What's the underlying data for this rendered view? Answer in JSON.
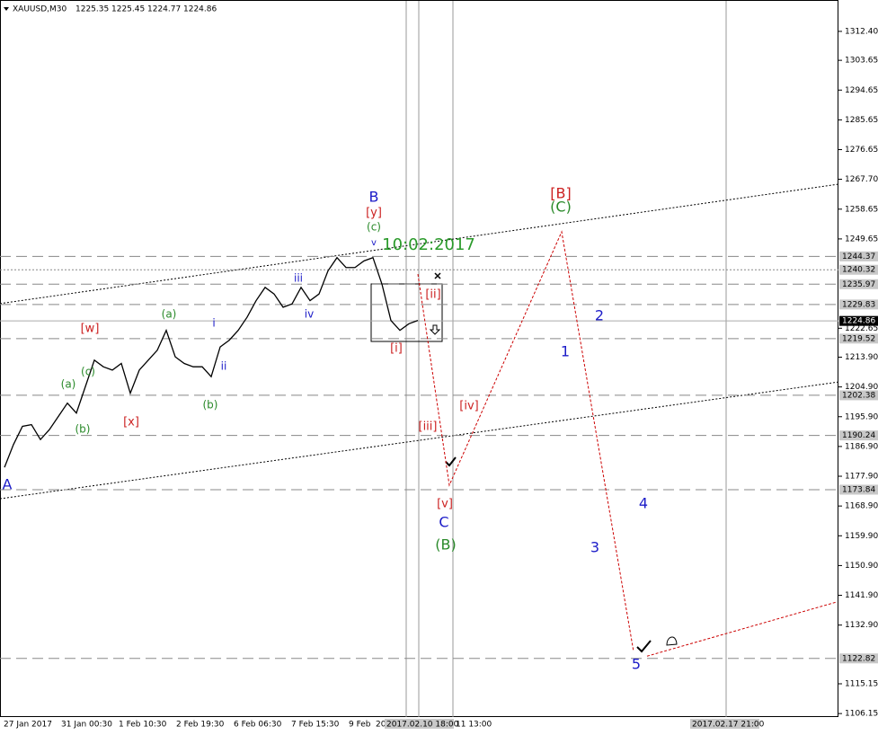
{
  "chart_data": {
    "type": "line",
    "title": "XAUUSD,M30",
    "ohlc": [
      1225.35,
      1225.45,
      1224.77,
      1224.86
    ],
    "ylim": [
      1105.1,
      1320.8
    ],
    "yticks": [
      {
        "value": 1312.4,
        "label": "1312.40"
      },
      {
        "value": 1303.65,
        "label": "1303.65"
      },
      {
        "value": 1294.65,
        "label": "1294.65"
      },
      {
        "value": 1285.65,
        "label": "1285.65"
      },
      {
        "value": 1276.65,
        "label": "1276.65"
      },
      {
        "value": 1267.7,
        "label": "1267.70"
      },
      {
        "value": 1258.65,
        "label": "1258.65"
      },
      {
        "value": 1249.65,
        "label": "1249.65"
      },
      {
        "value": 1222.65,
        "label": "1222.65"
      },
      {
        "value": 1213.9,
        "label": "1213.90"
      },
      {
        "value": 1204.9,
        "label": "1204.90"
      },
      {
        "value": 1195.9,
        "label": "1195.90"
      },
      {
        "value": 1186.9,
        "label": "1186.90"
      },
      {
        "value": 1177.9,
        "label": "1177.90"
      },
      {
        "value": 1168.9,
        "label": "1168.90"
      },
      {
        "value": 1159.9,
        "label": "1159.90"
      },
      {
        "value": 1150.9,
        "label": "1150.90"
      },
      {
        "value": 1141.9,
        "label": "1141.90"
      },
      {
        "value": 1132.9,
        "label": "1132.90"
      },
      {
        "value": 1115.15,
        "label": "1115.15"
      },
      {
        "value": 1106.15,
        "label": "1106.15"
      }
    ],
    "x_labels": [
      "27 Jan 2017",
      "31 Jan 00:30",
      "1 Feb 10:30",
      "2 Feb 19:30",
      "6 Feb 06:30",
      "7 Feb 15:30",
      "9 Feb",
      "20",
      "2017.02.10 18:00",
      "11 13:00",
      "2017.02.17 21:00"
    ],
    "series": [
      {
        "name": "XAUUSD",
        "color": "#000000",
        "values": [
          1180.6,
          1187.5,
          1193,
          1193.5,
          1189,
          1192,
          1196,
          1200,
          1197,
          1205,
          1213,
          1211,
          1210,
          1212,
          1203,
          1210,
          1213,
          1216,
          1222,
          1214,
          1212,
          1211,
          1211,
          1208,
          1217,
          1219,
          1222,
          1226,
          1231,
          1235,
          1233,
          1229,
          1230,
          1235,
          1231,
          1233,
          1240,
          1244,
          1241,
          1241,
          1243,
          1244,
          1236,
          1225,
          1222,
          1224,
          1225
        ]
      }
    ],
    "projection": {
      "color": "#cc0000",
      "values": [
        1239,
        1175.2,
        1251.8,
        1124.9
      ]
    },
    "target_line": {
      "color": "#cc0000",
      "values": [
        1123.5,
        1139.8
      ]
    },
    "channel": [
      {
        "values": [
          1230.1,
          1266.2
        ]
      },
      {
        "values": [
          1171.1,
          1206.4
        ]
      }
    ],
    "levels": [
      1244.37,
      1240.32,
      1235.97,
      1229.83,
      1219.52,
      1202.38,
      1190.24,
      1173.84,
      1122.82
    ],
    "current": 1224.86,
    "annotations": [
      {
        "text": "A",
        "color": "#1c1cc8"
      },
      {
        "text": "B",
        "color": "#1c1cc8"
      },
      {
        "text": "[y]",
        "color": "#cc2222"
      },
      {
        "text": "(c)",
        "color": "#2a8a2a"
      },
      {
        "text": "v",
        "color": "#1c1cc8"
      },
      {
        "text": "10:02:2017",
        "color": "#2a9a2a"
      },
      {
        "text": "iii",
        "color": "#1c1cc8"
      },
      {
        "text": "iv",
        "color": "#1c1cc8"
      },
      {
        "text": "i",
        "color": "#1c1cc8"
      },
      {
        "text": "ii",
        "color": "#1c1cc8"
      },
      {
        "text": "(a)",
        "color": "#2a8a2a"
      },
      {
        "text": "(b)",
        "color": "#2a8a2a"
      },
      {
        "text": "[w]",
        "color": "#cc2222"
      },
      {
        "text": "(c)",
        "color": "#2a8a2a"
      },
      {
        "text": "(a)",
        "color": "#2a8a2a"
      },
      {
        "text": "(b)",
        "color": "#2a8a2a"
      },
      {
        "text": "[x]",
        "color": "#cc2222"
      },
      {
        "text": "[ii]",
        "color": "#cc2222"
      },
      {
        "text": "[i]",
        "color": "#cc2222"
      },
      {
        "text": "[iii]",
        "color": "#cc2222"
      },
      {
        "text": "[iv]",
        "color": "#cc2222"
      },
      {
        "text": "[v]",
        "color": "#cc2222"
      },
      {
        "text": "C",
        "color": "#1c1cc8"
      },
      {
        "text": "(B)",
        "color": "#2a8a2a"
      },
      {
        "text": "[B]",
        "color": "#cc2222"
      },
      {
        "text": "(C)",
        "color": "#2a8a2a"
      },
      {
        "text": "2",
        "color": "#1c1cc8"
      },
      {
        "text": "1",
        "color": "#1c1cc8"
      },
      {
        "text": "4",
        "color": "#1c1cc8"
      },
      {
        "text": "3",
        "color": "#1c1cc8"
      },
      {
        "text": "5",
        "color": "#1c1cc8"
      }
    ]
  }
}
